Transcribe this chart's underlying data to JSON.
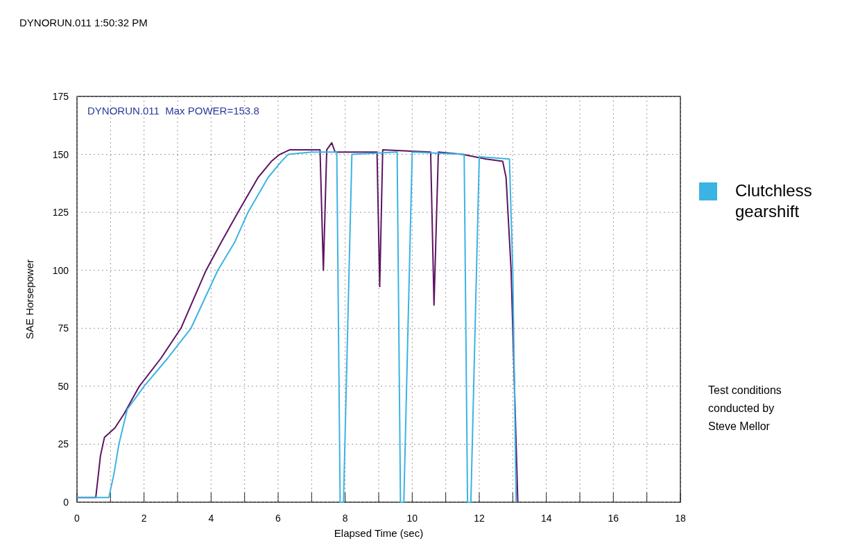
{
  "chart_data": {
    "type": "line",
    "xlabel": "Elapsed Time (sec)",
    "ylabel": "SAE Horsepower",
    "annotations": [
      "DYNORUN.011 1:50:32 PM",
      "DYNORUN.011  Max POWER=153.8",
      "Test conditions conducted by Steve Mellor"
    ],
    "xlim": [
      0,
      18
    ],
    "ylim": [
      0,
      175
    ],
    "xticks": [
      0,
      {
        "value": 1,
        "label": null
      },
      2,
      {
        "value": 3,
        "label": null
      },
      4,
      {
        "value": 5,
        "label": null
      },
      6,
      {
        "value": 7,
        "label": null
      },
      8,
      {
        "value": 9,
        "label": null
      },
      10,
      {
        "value": 11,
        "label": null
      },
      12,
      {
        "value": 13,
        "label": null
      },
      14,
      {
        "value": 15,
        "label": null
      },
      16,
      {
        "value": 17,
        "label": null
      },
      18
    ],
    "yticks": [
      0,
      25,
      50,
      75,
      100,
      125,
      150,
      175
    ],
    "grid": true,
    "legend": "right",
    "line_style": "solid",
    "marker": "none",
    "series": [
      {
        "color": "#5c1462",
        "x": [
          0,
          0.56,
          0.7,
          0.82,
          1.13,
          1.4,
          1.86,
          2.5,
          3.1,
          3.85,
          4.3,
          4.8,
          5.4,
          5.8,
          6.05,
          6.35,
          7.25,
          7.35,
          7.45,
          7.6,
          7.7,
          8.95,
          9.03,
          9.12,
          10.55,
          10.65,
          10.78,
          11.5,
          12.2,
          12.7,
          12.8,
          12.95,
          13.15
        ],
        "values": [
          2,
          2,
          20,
          28,
          32,
          38,
          50,
          62,
          75,
          100,
          112,
          125,
          140,
          147,
          150,
          152,
          152,
          100,
          152,
          155,
          151,
          151,
          93,
          152,
          151,
          85,
          151,
          150,
          148,
          147,
          140,
          100,
          0
        ]
      },
      {
        "name": "Clutchless gearshift",
        "color": "#3bb3e3",
        "x": [
          0,
          0.95,
          1.1,
          1.25,
          1.5,
          2.0,
          2.7,
          3.4,
          4.2,
          4.7,
          5.1,
          5.7,
          6.1,
          6.3,
          7.0,
          7.75,
          7.85,
          7.95,
          8.2,
          9.55,
          9.65,
          9.75,
          10.0,
          11.55,
          11.65,
          11.75,
          12.0,
          12.9,
          13.0,
          13.1
        ],
        "values": [
          2,
          2,
          12,
          25,
          40,
          50,
          62,
          75,
          100,
          112,
          125,
          140,
          147,
          150,
          151,
          151,
          0,
          0,
          150,
          151,
          0,
          0,
          151,
          150,
          0,
          0,
          149,
          148,
          100,
          0
        ]
      }
    ]
  }
}
